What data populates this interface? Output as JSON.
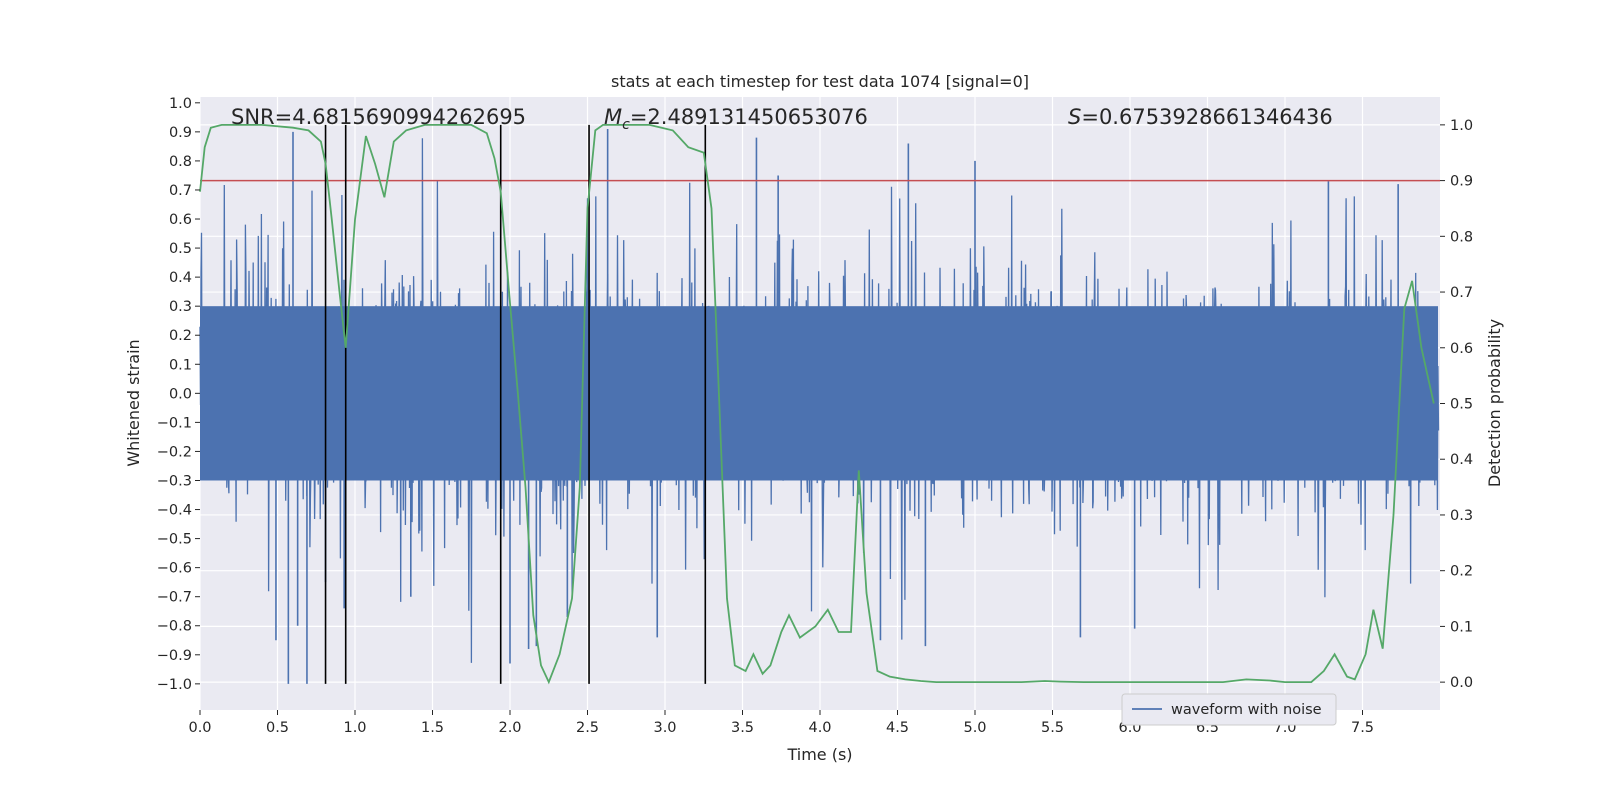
{
  "chart_data": {
    "type": "line",
    "title": "stats at each timestep for test data 1074 [signal=0]",
    "xlabel": "Time (s)",
    "ylabel": "Whitened strain",
    "y2label": "Detection probability",
    "xlim": [
      0.0,
      8.0
    ],
    "ylim": [
      -1.09,
      1.02
    ],
    "y2lim": [
      -0.05,
      1.05
    ],
    "xticks": [
      0.0,
      0.5,
      1.0,
      1.5,
      2.0,
      2.5,
      3.0,
      3.5,
      4.0,
      4.5,
      5.0,
      5.5,
      6.0,
      6.5,
      7.0,
      7.5
    ],
    "xtick_labels": [
      "0.0",
      "0.5",
      "1.0",
      "1.5",
      "2.0",
      "2.5",
      "3.0",
      "3.5",
      "4.0",
      "4.5",
      "5.0",
      "5.5",
      "6.0",
      "6.5",
      "7.0",
      "7.5"
    ],
    "yticks": [
      -1.0,
      -0.9,
      -0.8,
      -0.7,
      -0.6,
      -0.5,
      -0.4,
      -0.3,
      -0.2,
      -0.1,
      0.0,
      0.1,
      0.2,
      0.3,
      0.4,
      0.5,
      0.6,
      0.7,
      0.8,
      0.9,
      1.0
    ],
    "ytick_labels": [
      "−1.0",
      "−0.9",
      "−0.8",
      "−0.7",
      "−0.6",
      "−0.5",
      "−0.4",
      "−0.3",
      "−0.2",
      "−0.1",
      "0.0",
      "0.1",
      "0.2",
      "0.3",
      "0.4",
      "0.5",
      "0.6",
      "0.7",
      "0.8",
      "0.9",
      "1.0"
    ],
    "y2ticks": [
      0.0,
      0.1,
      0.2,
      0.3,
      0.4,
      0.5,
      0.6,
      0.7,
      0.8,
      0.9,
      1.0
    ],
    "y2tick_labels": [
      "0.0",
      "0.1",
      "0.2",
      "0.3",
      "0.4",
      "0.5",
      "0.6",
      "0.7",
      "0.8",
      "0.9",
      "1.0"
    ],
    "annotations": {
      "snr": "SNR=4.6815690994262695",
      "mc_symbol": "M",
      "mc_sub": "c",
      "mc_value": "=2.489131450653076",
      "s_symbol": "S",
      "s_value": "=0.6753928661346436"
    },
    "threshold": {
      "value": 0.9,
      "axis": "y2",
      "color": "#c44e52"
    },
    "vertical_lines": [
      0.81,
      0.94,
      1.94,
      2.51,
      3.26
    ],
    "series": [
      {
        "name": "waveform with noise",
        "axis": "y",
        "color": "#4c72b0",
        "description_envelope": {
          "core_amplitude": 0.3,
          "typical_peak": 0.6,
          "max": 0.91,
          "min": -1.0
        },
        "spikes": [
          {
            "t": 0.57,
            "v": -1.0
          },
          {
            "t": 0.69,
            "v": -1.0
          },
          {
            "t": 0.49,
            "v": -0.85
          },
          {
            "t": 0.6,
            "v": 0.9
          },
          {
            "t": 0.63,
            "v": -0.8
          },
          {
            "t": 0.81,
            "v": -0.65
          },
          {
            "t": 0.93,
            "v": -0.74
          },
          {
            "t": 2.12,
            "v": -0.88
          },
          {
            "t": 2.0,
            "v": -0.93
          },
          {
            "t": 2.63,
            "v": 0.91
          },
          {
            "t": 2.17,
            "v": -0.87
          },
          {
            "t": 2.95,
            "v": -0.84
          },
          {
            "t": 3.59,
            "v": 0.88
          },
          {
            "t": 4.57,
            "v": 0.86
          },
          {
            "t": 4.39,
            "v": -0.85
          },
          {
            "t": 4.68,
            "v": -0.87
          },
          {
            "t": 5.0,
            "v": 0.8
          },
          {
            "t": 5.68,
            "v": -0.84
          },
          {
            "t": 6.03,
            "v": -0.81
          },
          {
            "t": 3.73,
            "v": 0.75
          },
          {
            "t": 1.36,
            "v": -0.7
          },
          {
            "t": 2.37,
            "v": -0.77
          },
          {
            "t": 7.28,
            "v": 0.73
          },
          {
            "t": 7.73,
            "v": 0.72
          }
        ]
      },
      {
        "name": "detection probability",
        "axis": "y2",
        "color": "#55a868",
        "x": [
          0.0,
          0.03,
          0.07,
          0.14,
          0.25,
          0.4,
          0.6,
          0.7,
          0.78,
          0.81,
          0.85,
          0.9,
          0.94,
          1.0,
          1.07,
          1.13,
          1.19,
          1.25,
          1.33,
          1.45,
          1.6,
          1.75,
          1.85,
          1.9,
          1.94,
          2.0,
          2.05,
          2.1,
          2.15,
          2.2,
          2.25,
          2.32,
          2.4,
          2.45,
          2.5,
          2.55,
          2.6,
          2.7,
          2.9,
          3.05,
          3.15,
          3.25,
          3.3,
          3.35,
          3.4,
          3.45,
          3.52,
          3.57,
          3.63,
          3.68,
          3.75,
          3.8,
          3.87,
          3.97,
          4.05,
          4.12,
          4.2,
          4.25,
          4.3,
          4.37,
          4.45,
          4.55,
          4.65,
          4.75,
          4.9,
          5.1,
          5.3,
          5.45,
          5.55,
          5.7,
          5.9,
          6.1,
          6.3,
          6.5,
          6.6,
          6.75,
          6.9,
          7.0,
          7.1,
          7.17,
          7.25,
          7.32,
          7.4,
          7.45,
          7.52,
          7.57,
          7.63,
          7.7,
          7.77,
          7.82,
          7.88,
          7.96
        ],
        "values": [
          0.88,
          0.96,
          0.995,
          1.0,
          1.0,
          1.0,
          0.995,
          0.99,
          0.97,
          0.93,
          0.83,
          0.7,
          0.6,
          0.83,
          0.98,
          0.93,
          0.87,
          0.97,
          0.99,
          1.0,
          1.0,
          1.0,
          0.985,
          0.94,
          0.88,
          0.68,
          0.52,
          0.35,
          0.12,
          0.03,
          0.0,
          0.05,
          0.15,
          0.35,
          0.85,
          0.99,
          1.0,
          1.0,
          1.0,
          0.99,
          0.96,
          0.95,
          0.85,
          0.5,
          0.15,
          0.03,
          0.02,
          0.05,
          0.015,
          0.03,
          0.09,
          0.12,
          0.08,
          0.1,
          0.13,
          0.09,
          0.09,
          0.38,
          0.16,
          0.02,
          0.01,
          0.005,
          0.002,
          0.0,
          0.0,
          0.0,
          0.0,
          0.002,
          0.001,
          0.0,
          0.0,
          0.0,
          0.0,
          0.0,
          0.0,
          0.005,
          0.003,
          0.0,
          0.0,
          0.0,
          0.02,
          0.05,
          0.01,
          0.005,
          0.05,
          0.13,
          0.06,
          0.3,
          0.67,
          0.72,
          0.6,
          0.5
        ]
      }
    ],
    "legend": {
      "position": "lower-right",
      "entries": [
        "waveform with noise"
      ]
    }
  }
}
